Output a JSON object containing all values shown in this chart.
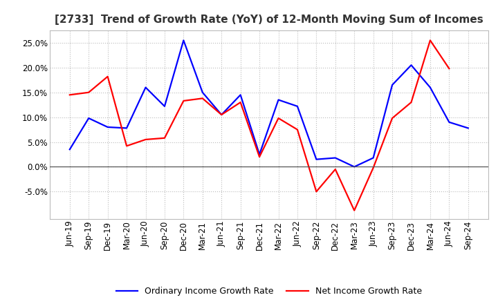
{
  "title": "[2733]  Trend of Growth Rate (YoY) of 12-Month Moving Sum of Incomes",
  "x_labels": [
    "Jun-19",
    "Sep-19",
    "Dec-19",
    "Mar-20",
    "Jun-20",
    "Sep-20",
    "Dec-20",
    "Mar-21",
    "Jun-21",
    "Sep-21",
    "Dec-21",
    "Mar-22",
    "Jun-22",
    "Sep-22",
    "Dec-22",
    "Mar-23",
    "Jun-23",
    "Sep-23",
    "Dec-23",
    "Mar-24",
    "Jun-24",
    "Sep-24"
  ],
  "ordinary_income": [
    3.5,
    9.8,
    8.0,
    7.8,
    16.0,
    12.2,
    25.5,
    15.0,
    10.5,
    14.5,
    2.5,
    13.5,
    12.2,
    1.5,
    1.8,
    0.0,
    1.8,
    16.5,
    20.5,
    16.0,
    9.0,
    7.8
  ],
  "net_income": [
    14.5,
    15.0,
    18.2,
    4.2,
    5.5,
    5.8,
    13.3,
    13.8,
    10.5,
    13.0,
    2.0,
    9.8,
    7.5,
    -5.0,
    -0.5,
    -8.8,
    -0.2,
    9.8,
    13.0,
    25.5,
    19.8,
    null
  ],
  "ylim": [
    -10.5,
    27.5
  ],
  "yticks": [
    -5.0,
    0.0,
    5.0,
    10.0,
    15.0,
    20.0,
    25.0
  ],
  "blue_color": "#0000FF",
  "red_color": "#FF0000",
  "background_color": "#FFFFFF",
  "grid_color": "#BBBBBB",
  "legend_ordinary": "Ordinary Income Growth Rate",
  "legend_net": "Net Income Growth Rate",
  "title_fontsize": 11,
  "tick_fontsize": 8.5
}
